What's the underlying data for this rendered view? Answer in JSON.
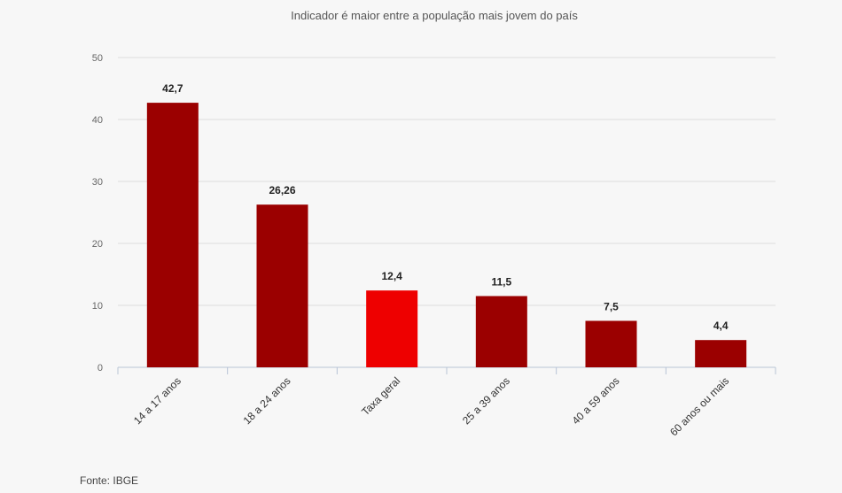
{
  "chart_data": {
    "type": "bar",
    "title": "Indicador é maior entre a população mais jovem do país",
    "categories": [
      "14 a 17 anos",
      "18 a 24 anos",
      "Taxa geral",
      "25 a 39 anos",
      "40 a 59 anos",
      "60 anos ou mais"
    ],
    "values": [
      42.7,
      26.26,
      12.4,
      11.5,
      7.5,
      4.4
    ],
    "value_labels": [
      "42,7",
      "26,26",
      "12,4",
      "11,5",
      "7,5",
      "4,4"
    ],
    "colors": [
      "#9b0000",
      "#9b0000",
      "#ee0000",
      "#9b0000",
      "#9b0000",
      "#9b0000"
    ],
    "y_ticks": [
      0,
      10,
      20,
      30,
      40,
      50
    ],
    "ylim": [
      0,
      50
    ],
    "xlabel": "",
    "ylabel": "",
    "grid": true,
    "legend": "none"
  },
  "source": "Fonte: IBGE"
}
